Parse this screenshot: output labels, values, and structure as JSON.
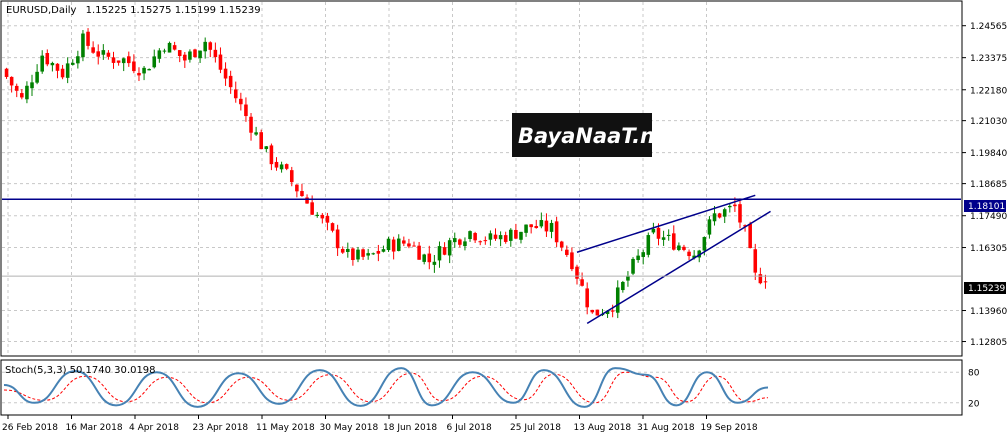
{
  "chart_data": [
    {
      "type": "candlestick",
      "symbol_title": "EURUSD,Daily",
      "ohlc_header": "1.15225 1.15275 1.15199 1.15239",
      "y_ticks": [
        "1.24565",
        "1.23375",
        "1.22180",
        "1.21030",
        "1.19840",
        "1.18685",
        "1.17490",
        "1.16305",
        "1.13960",
        "1.12805"
      ],
      "ylim": [
        1.1249,
        1.2515
      ],
      "x_labels": [
        "26 Feb 2018",
        "16 Mar 2018",
        "4 Apr 2018",
        "23 Apr 2018",
        "11 May 2018",
        "30 May 2018",
        "18 Jun 2018",
        "6 Jul 2018",
        "25 Jul 2018",
        "13 Aug 2018",
        "31 Aug 2018",
        "19 Sep 2018"
      ],
      "bar_count": 150,
      "horizontal_line_label": "1.18101",
      "horizontal_line_value": 1.18101,
      "current_price_label": "1.15239",
      "current_price_value": 1.15239,
      "close_path": [
        [
          0,
          1.2295
        ],
        [
          4,
          1.218
        ],
        [
          8,
          1.235
        ],
        [
          12,
          1.228
        ],
        [
          16,
          1.24
        ],
        [
          20,
          1.234
        ],
        [
          24,
          1.233
        ],
        [
          28,
          1.229
        ],
        [
          32,
          1.239
        ],
        [
          36,
          1.233
        ],
        [
          40,
          1.24
        ],
        [
          44,
          1.226
        ],
        [
          48,
          1.212
        ],
        [
          52,
          1.198
        ],
        [
          56,
          1.19
        ],
        [
          60,
          1.18
        ],
        [
          64,
          1.17
        ],
        [
          68,
          1.16
        ],
        [
          72,
          1.159
        ],
        [
          76,
          1.164
        ],
        [
          80,
          1.165
        ],
        [
          84,
          1.158
        ],
        [
          88,
          1.165
        ],
        [
          92,
          1.169
        ],
        [
          96,
          1.166
        ],
        [
          100,
          1.168
        ],
        [
          104,
          1.171
        ],
        [
          108,
          1.17
        ],
        [
          112,
          1.158
        ],
        [
          116,
          1.138
        ],
        [
          120,
          1.142
        ],
        [
          124,
          1.156
        ],
        [
          128,
          1.168
        ],
        [
          132,
          1.165
        ],
        [
          136,
          1.161
        ],
        [
          140,
          1.175
        ],
        [
          144,
          1.178
        ],
        [
          146,
          1.168
        ],
        [
          148,
          1.152
        ],
        [
          150,
          1.1524
        ]
      ],
      "trendlines": [
        {
          "x1": 112,
          "y1": 1.1613,
          "x2": 147,
          "y2": 1.1825
        },
        {
          "x1": 114,
          "y1": 1.1348,
          "x2": 150,
          "y2": 1.1765
        }
      ],
      "watermark": "BayaNaaT.net",
      "colors": {
        "up": "#008000",
        "down": "#ff0000",
        "line": "#00008b",
        "grid": "#c8c8c8",
        "stoch_main": "#4682b4",
        "stoch_signal": "#ff0000"
      }
    },
    {
      "type": "line",
      "title": "Stoch(5,3,3) 50.1740 30.0198",
      "y_ticks": [
        "80",
        "20"
      ],
      "ylim": [
        0,
        100
      ],
      "main_path": [
        [
          0,
          55
        ],
        [
          6,
          20
        ],
        [
          14,
          82
        ],
        [
          22,
          15
        ],
        [
          30,
          80
        ],
        [
          38,
          12
        ],
        [
          46,
          78
        ],
        [
          54,
          18
        ],
        [
          62,
          84
        ],
        [
          70,
          14
        ],
        [
          78,
          88
        ],
        [
          84,
          15
        ],
        [
          92,
          80
        ],
        [
          100,
          20
        ],
        [
          106,
          84
        ],
        [
          114,
          12
        ],
        [
          120,
          88
        ],
        [
          126,
          75
        ],
        [
          132,
          15
        ],
        [
          138,
          80
        ],
        [
          144,
          20
        ],
        [
          150,
          50
        ]
      ],
      "signal_path": [
        [
          0,
          45
        ],
        [
          8,
          25
        ],
        [
          16,
          72
        ],
        [
          24,
          22
        ],
        [
          32,
          70
        ],
        [
          40,
          20
        ],
        [
          48,
          70
        ],
        [
          56,
          25
        ],
        [
          64,
          75
        ],
        [
          72,
          22
        ],
        [
          80,
          78
        ],
        [
          86,
          24
        ],
        [
          94,
          72
        ],
        [
          102,
          26
        ],
        [
          108,
          76
        ],
        [
          116,
          20
        ],
        [
          122,
          80
        ],
        [
          128,
          70
        ],
        [
          134,
          22
        ],
        [
          140,
          72
        ],
        [
          146,
          22
        ],
        [
          150,
          30
        ]
      ]
    }
  ]
}
